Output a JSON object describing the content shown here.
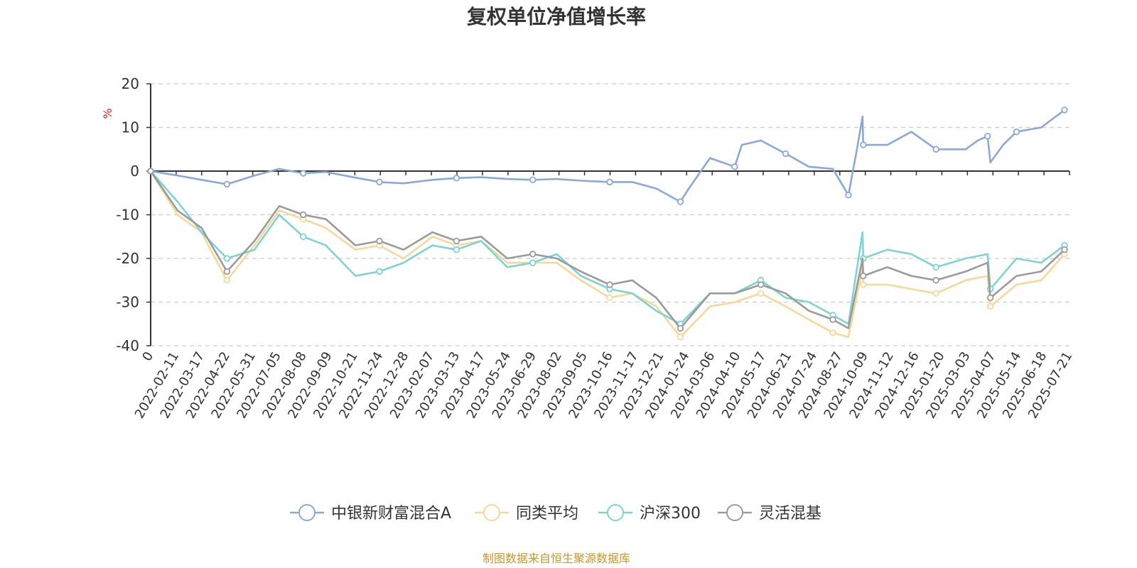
{
  "chart_data": {
    "type": "line",
    "title": "复权单位净值增长率",
    "ylabel": "%",
    "ylim": [
      -40,
      20
    ],
    "yticks": [
      "20",
      "10",
      "0",
      "-10",
      "-20",
      "-30",
      "-40"
    ],
    "xlim": [
      "2022-01-04",
      "2025-07-28"
    ],
    "xticks": [
      "0",
      "2022-02-11",
      "2022-03-17",
      "2022-04-22",
      "2022-05-31",
      "2022-07-05",
      "2022-08-08",
      "2022-09-09",
      "2022-10-21",
      "2022-11-24",
      "2022-12-28",
      "2023-02-07",
      "2023-03-13",
      "2023-04-17",
      "2023-05-24",
      "2023-06-29",
      "2023-08-02",
      "2023-09-05",
      "2023-10-16",
      "2023-11-17",
      "2023-12-21",
      "2024-01-24",
      "2024-03-06",
      "2024-04-10",
      "2024-05-17",
      "2024-06-21",
      "2024-07-24",
      "2024-08-27",
      "2024-10-09",
      "2024-11-12",
      "2024-12-16",
      "2025-01-20",
      "2025-03-03",
      "2025-04-07",
      "2025-05-14",
      "2025-06-18",
      "2025-07-21"
    ],
    "grid": true,
    "legend_position": "bottom",
    "source_note": "制图数据来自恒生聚源数据库",
    "series": [
      {
        "name": "中银新财富混合A",
        "color": "#8aa9d8",
        "points": [
          [
            "2022-01-04",
            0
          ],
          [
            "2022-02-11",
            -1
          ],
          [
            "2022-03-17",
            -2
          ],
          [
            "2022-04-22",
            -3
          ],
          [
            "2022-05-31",
            -1
          ],
          [
            "2022-07-05",
            0.5
          ],
          [
            "2022-08-08",
            -0.5
          ],
          [
            "2022-09-09",
            -0.2
          ],
          [
            "2022-10-21",
            -1.5
          ],
          [
            "2022-11-24",
            -2.5
          ],
          [
            "2022-12-28",
            -2.8
          ],
          [
            "2023-02-07",
            -2
          ],
          [
            "2023-03-13",
            -1.6
          ],
          [
            "2023-04-17",
            -1.4
          ],
          [
            "2023-05-24",
            -1.8
          ],
          [
            "2023-06-29",
            -2
          ],
          [
            "2023-08-02",
            -1.8
          ],
          [
            "2023-09-05",
            -2.2
          ],
          [
            "2023-10-16",
            -2.5
          ],
          [
            "2023-11-17",
            -2.5
          ],
          [
            "2023-12-21",
            -4
          ],
          [
            "2024-01-24",
            -7
          ],
          [
            "2024-02-05",
            -4
          ],
          [
            "2024-03-06",
            3
          ],
          [
            "2024-04-10",
            1
          ],
          [
            "2024-04-20",
            6
          ],
          [
            "2024-05-17",
            7
          ],
          [
            "2024-06-21",
            4
          ],
          [
            "2024-07-24",
            1
          ],
          [
            "2024-08-27",
            0.5
          ],
          [
            "2024-09-18",
            -5.5
          ],
          [
            "2024-09-30",
            5
          ],
          [
            "2024-10-08",
            12.5
          ],
          [
            "2024-10-09",
            6
          ],
          [
            "2024-11-12",
            6
          ],
          [
            "2024-12-16",
            9
          ],
          [
            "2025-01-20",
            5
          ],
          [
            "2025-03-03",
            5
          ],
          [
            "2025-03-20",
            7
          ],
          [
            "2025-04-03",
            8
          ],
          [
            "2025-04-07",
            2
          ],
          [
            "2025-04-25",
            6
          ],
          [
            "2025-05-14",
            9
          ],
          [
            "2025-06-18",
            10
          ],
          [
            "2025-07-21",
            14
          ]
        ]
      },
      {
        "name": "同类平均",
        "color": "#f7d89a",
        "points": [
          [
            "2022-01-04",
            0
          ],
          [
            "2022-02-11",
            -10
          ],
          [
            "2022-03-17",
            -14
          ],
          [
            "2022-04-22",
            -25
          ],
          [
            "2022-05-31",
            -17
          ],
          [
            "2022-07-05",
            -9
          ],
          [
            "2022-08-08",
            -11
          ],
          [
            "2022-09-09",
            -13
          ],
          [
            "2022-10-21",
            -18
          ],
          [
            "2022-11-24",
            -17
          ],
          [
            "2022-12-28",
            -20
          ],
          [
            "2023-02-07",
            -15
          ],
          [
            "2023-03-13",
            -17
          ],
          [
            "2023-04-17",
            -16
          ],
          [
            "2023-05-24",
            -21
          ],
          [
            "2023-06-29",
            -21
          ],
          [
            "2023-08-02",
            -21
          ],
          [
            "2023-09-05",
            -25
          ],
          [
            "2023-10-16",
            -29
          ],
          [
            "2023-11-17",
            -28
          ],
          [
            "2023-12-21",
            -31
          ],
          [
            "2024-01-24",
            -38
          ],
          [
            "2024-03-06",
            -31
          ],
          [
            "2024-04-10",
            -30
          ],
          [
            "2024-05-17",
            -28
          ],
          [
            "2024-06-21",
            -31
          ],
          [
            "2024-07-24",
            -34
          ],
          [
            "2024-08-27",
            -37
          ],
          [
            "2024-09-18",
            -38
          ],
          [
            "2024-10-08",
            -22
          ],
          [
            "2024-10-09",
            -26
          ],
          [
            "2024-11-12",
            -26
          ],
          [
            "2024-12-16",
            -27
          ],
          [
            "2025-01-20",
            -28
          ],
          [
            "2025-03-03",
            -25
          ],
          [
            "2025-04-03",
            -24
          ],
          [
            "2025-04-07",
            -31
          ],
          [
            "2025-05-14",
            -26
          ],
          [
            "2025-06-18",
            -25
          ],
          [
            "2025-07-21",
            -19
          ]
        ]
      },
      {
        "name": "沪深300",
        "color": "#7dd3d6",
        "points": [
          [
            "2022-01-04",
            0
          ],
          [
            "2022-02-11",
            -7
          ],
          [
            "2022-03-17",
            -14
          ],
          [
            "2022-04-22",
            -20
          ],
          [
            "2022-05-31",
            -18
          ],
          [
            "2022-07-05",
            -10
          ],
          [
            "2022-08-08",
            -15
          ],
          [
            "2022-09-09",
            -17
          ],
          [
            "2022-10-21",
            -24
          ],
          [
            "2022-11-24",
            -23
          ],
          [
            "2022-12-28",
            -21
          ],
          [
            "2023-02-07",
            -17
          ],
          [
            "2023-03-13",
            -18
          ],
          [
            "2023-04-17",
            -16
          ],
          [
            "2023-05-24",
            -22
          ],
          [
            "2023-06-29",
            -21
          ],
          [
            "2023-08-02",
            -19
          ],
          [
            "2023-09-05",
            -24
          ],
          [
            "2023-10-16",
            -27
          ],
          [
            "2023-11-17",
            -28
          ],
          [
            "2023-12-21",
            -32
          ],
          [
            "2024-01-24",
            -35
          ],
          [
            "2024-03-06",
            -28
          ],
          [
            "2024-04-10",
            -28
          ],
          [
            "2024-05-17",
            -25
          ],
          [
            "2024-06-21",
            -29
          ],
          [
            "2024-07-24",
            -30
          ],
          [
            "2024-08-27",
            -33
          ],
          [
            "2024-09-18",
            -35
          ],
          [
            "2024-10-08",
            -14
          ],
          [
            "2024-10-09",
            -20
          ],
          [
            "2024-11-12",
            -18
          ],
          [
            "2024-12-16",
            -19
          ],
          [
            "2025-01-20",
            -22
          ],
          [
            "2025-03-03",
            -20
          ],
          [
            "2025-04-03",
            -19
          ],
          [
            "2025-04-07",
            -27
          ],
          [
            "2025-05-14",
            -20
          ],
          [
            "2025-06-18",
            -21
          ],
          [
            "2025-07-21",
            -17
          ]
        ]
      },
      {
        "name": "灵活混基",
        "color": "#9b9b9b",
        "points": [
          [
            "2022-01-04",
            0
          ],
          [
            "2022-02-11",
            -9
          ],
          [
            "2022-03-17",
            -13
          ],
          [
            "2022-04-22",
            -23
          ],
          [
            "2022-05-31",
            -16
          ],
          [
            "2022-07-05",
            -8
          ],
          [
            "2022-08-08",
            -10
          ],
          [
            "2022-09-09",
            -11
          ],
          [
            "2022-10-21",
            -17
          ],
          [
            "2022-11-24",
            -16
          ],
          [
            "2022-12-28",
            -18
          ],
          [
            "2023-02-07",
            -14
          ],
          [
            "2023-03-13",
            -16
          ],
          [
            "2023-04-17",
            -15
          ],
          [
            "2023-05-24",
            -20
          ],
          [
            "2023-06-29",
            -19
          ],
          [
            "2023-08-02",
            -20
          ],
          [
            "2023-09-05",
            -23
          ],
          [
            "2023-10-16",
            -26
          ],
          [
            "2023-11-17",
            -25
          ],
          [
            "2023-12-21",
            -29
          ],
          [
            "2024-01-24",
            -36
          ],
          [
            "2024-03-06",
            -28
          ],
          [
            "2024-04-10",
            -28
          ],
          [
            "2024-05-17",
            -26
          ],
          [
            "2024-06-21",
            -28
          ],
          [
            "2024-07-24",
            -32
          ],
          [
            "2024-08-27",
            -34
          ],
          [
            "2024-09-18",
            -36
          ],
          [
            "2024-10-08",
            -20
          ],
          [
            "2024-10-09",
            -24
          ],
          [
            "2024-11-12",
            -22
          ],
          [
            "2024-12-16",
            -24
          ],
          [
            "2025-01-20",
            -25
          ],
          [
            "2025-03-03",
            -23
          ],
          [
            "2025-04-03",
            -21
          ],
          [
            "2025-04-07",
            -29
          ],
          [
            "2025-05-14",
            -24
          ],
          [
            "2025-06-18",
            -23
          ],
          [
            "2025-07-21",
            -18
          ]
        ]
      }
    ]
  }
}
